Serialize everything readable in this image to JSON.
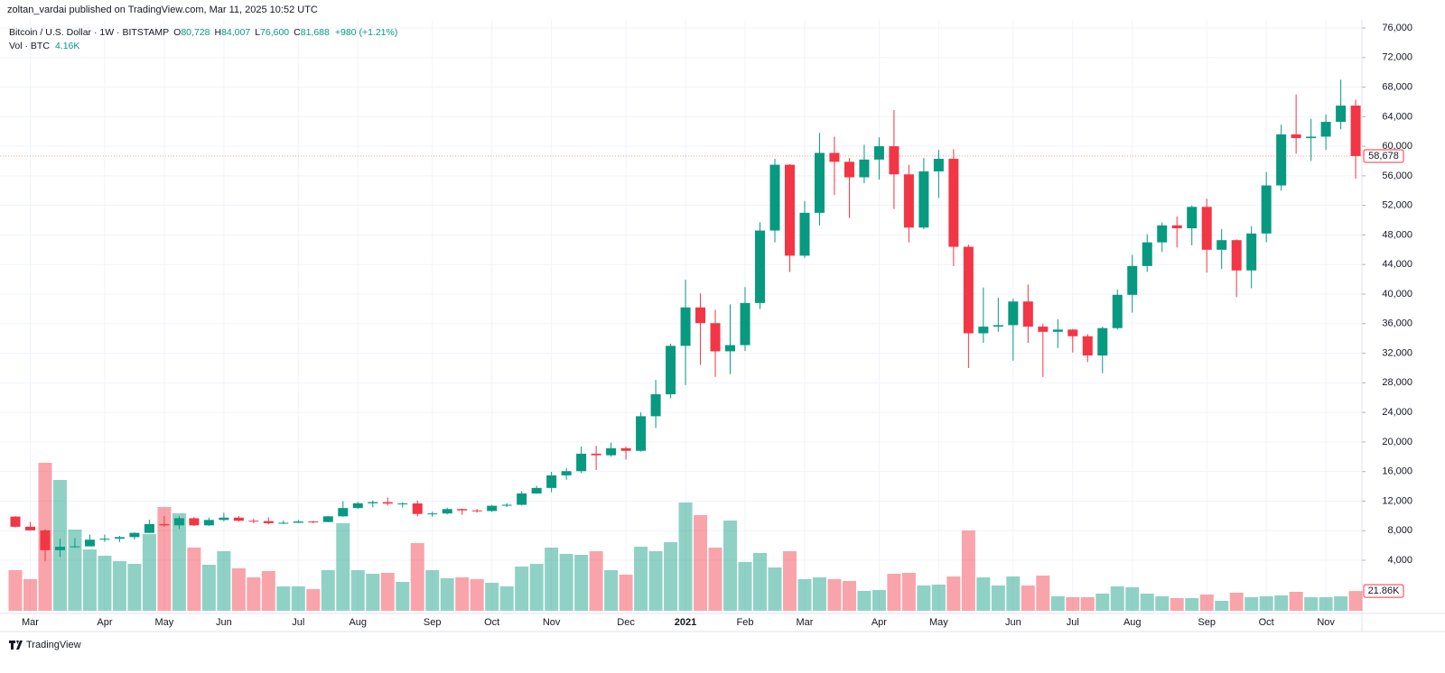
{
  "header": {
    "publisher": "zoltan_vardai published on TradingView.com, Mar 11, 2025 10:52 UTC"
  },
  "footer": {
    "brand": "TradingView"
  },
  "chart_data": {
    "type": "candlestick",
    "legend": {
      "symbol": "Bitcoin / U.S. Dollar · 1W · BITSTAMP",
      "ohlc": [
        {
          "key": "O",
          "value": "80,728"
        },
        {
          "key": "H",
          "value": "84,007"
        },
        {
          "key": "L",
          "value": "76,600"
        },
        {
          "key": "C",
          "value": "81,688"
        }
      ],
      "change": "+980 (+1.21%)",
      "volume_name": "Vol · BTC",
      "volume_value": "4.16K"
    },
    "up_color": "#089981",
    "down_color": "#f23645",
    "categories": [
      null,
      "Mar",
      null,
      null,
      null,
      null,
      "Apr",
      null,
      null,
      null,
      "May",
      null,
      null,
      null,
      "Jun",
      null,
      null,
      null,
      null,
      "Jul",
      null,
      null,
      null,
      "Aug",
      null,
      null,
      null,
      null,
      "Sep",
      null,
      null,
      null,
      "Oct",
      null,
      null,
      null,
      "Nov",
      null,
      null,
      null,
      null,
      "Dec",
      null,
      null,
      null,
      "2021",
      null,
      null,
      null,
      "Feb",
      null,
      null,
      null,
      "Mar",
      null,
      null,
      null,
      null,
      "Apr",
      null,
      null,
      null,
      "May",
      null,
      null,
      null,
      null,
      "Jun",
      null,
      null,
      null,
      "Jul",
      null,
      null,
      null,
      "Aug",
      null,
      null,
      null,
      null,
      "Sep",
      null,
      null,
      null,
      "Oct",
      null,
      null,
      null,
      "Nov",
      null,
      null
    ],
    "open": [
      9900,
      8530,
      8040,
      5360,
      5820,
      5880,
      6780,
      6910,
      7130,
      7700,
      8890,
      8720,
      9680,
      8720,
      9450,
      9760,
      9340,
      9290,
      9010,
      9070,
      9240,
      9170,
      9940,
      11060,
      11700,
      11860,
      11660,
      11680,
      10260,
      10330,
      10920,
      10740,
      10660,
      11370,
      11500,
      13030,
      13780,
      15480,
      16050,
      18410,
      18200,
      19150,
      18800,
      23480,
      26450,
      33000,
      38200,
      36070,
      32260,
      33100,
      38800,
      48600,
      57500,
      45200,
      51000,
      59100,
      57900,
      55800,
      58200,
      60000,
      56200,
      49000,
      56600,
      58300,
      46400,
      34700,
      35600,
      35800,
      39000,
      35600,
      34900,
      35200,
      34300,
      31700,
      35400,
      39900,
      43800,
      47000,
      49300,
      48900,
      51800,
      46000,
      47300,
      43200,
      48200,
      54700,
      61600,
      61100,
      61300,
      63300,
      65500
    ],
    "high": [
      9960,
      9180,
      8180,
      6900,
      6980,
      7470,
      7470,
      7300,
      7780,
      9480,
      10000,
      9950,
      9840,
      9760,
      10430,
      9990,
      9590,
      9790,
      9360,
      9450,
      9320,
      10000,
      12000,
      11910,
      12080,
      12480,
      11840,
      12080,
      10580,
      11100,
      10990,
      10950,
      11480,
      11730,
      13350,
      14060,
      15960,
      16480,
      19400,
      19480,
      19920,
      19390,
      24000,
      28400,
      33300,
      41950,
      40100,
      37880,
      38600,
      40950,
      49700,
      58300,
      57580,
      52600,
      61800,
      61300,
      58400,
      60200,
      61200,
      64900,
      57500,
      58400,
      59500,
      59600,
      46700,
      40900,
      39500,
      39400,
      41300,
      36000,
      36600,
      35300,
      34600,
      35600,
      40600,
      45300,
      48100,
      49700,
      50500,
      52000,
      52900,
      48800,
      47400,
      49200,
      56500,
      62900,
      67000,
      63700,
      64300,
      69000,
      66300
    ],
    "low": [
      8430,
      8000,
      3850,
      4440,
      5700,
      5870,
      6480,
      6470,
      6790,
      7680,
      8530,
      8210,
      8640,
      8630,
      9270,
      9220,
      9020,
      8850,
      8890,
      9050,
      9010,
      9130,
      9880,
      10960,
      11150,
      11400,
      11120,
      9900,
      9880,
      10200,
      10130,
      10430,
      10540,
      11200,
      11410,
      12990,
      13200,
      14880,
      15780,
      16200,
      18000,
      17600,
      18700,
      21900,
      25900,
      27700,
      30420,
      28800,
      29180,
      32300,
      37990,
      47000,
      43000,
      44900,
      49300,
      53400,
      50300,
      55000,
      55500,
      51500,
      47000,
      48800,
      53000,
      43800,
      30000,
      33400,
      34900,
      31000,
      33400,
      28800,
      32700,
      32100,
      30800,
      29300,
      35200,
      37500,
      43000,
      45700,
      46300,
      46600,
      42900,
      43400,
      39600,
      40800,
      47000,
      54000,
      59000,
      58000,
      59500,
      62300,
      55600
    ],
    "close": [
      8530,
      8040,
      5360,
      5820,
      5880,
      6780,
      6910,
      7130,
      7700,
      8890,
      8720,
      9680,
      8720,
      9450,
      9760,
      9340,
      9290,
      9010,
      9070,
      9240,
      9170,
      9940,
      11060,
      11700,
      11860,
      11660,
      11680,
      10260,
      10330,
      10920,
      10740,
      10660,
      11370,
      11500,
      13030,
      13780,
      15480,
      16050,
      18410,
      18200,
      19150,
      18800,
      23480,
      26450,
      33000,
      38200,
      36070,
      32260,
      33100,
      38800,
      48600,
      57500,
      45200,
      51000,
      59100,
      57900,
      55800,
      58200,
      60000,
      56200,
      49000,
      56600,
      58300,
      46400,
      34700,
      35600,
      35800,
      39000,
      35600,
      34900,
      35200,
      34300,
      31700,
      35400,
      39900,
      43800,
      47000,
      49300,
      48900,
      51800,
      46000,
      47300,
      43200,
      48200,
      54700,
      61600,
      61100,
      61300,
      63300,
      65500,
      58678
    ],
    "last_close_label": "58,678",
    "volume": [
      45000,
      35000,
      164000,
      145000,
      90000,
      68000,
      61000,
      55000,
      52000,
      85000,
      115000,
      108000,
      70000,
      51000,
      66000,
      47000,
      37000,
      44000,
      27000,
      27000,
      24000,
      45000,
      97000,
      45000,
      41000,
      42000,
      32000,
      75000,
      45000,
      36000,
      37000,
      35000,
      31000,
      27000,
      49000,
      52000,
      70000,
      63000,
      62000,
      66000,
      45000,
      40000,
      71000,
      66000,
      76000,
      120000,
      106000,
      70000,
      100000,
      54000,
      64000,
      48000,
      66000,
      35000,
      37000,
      35000,
      33000,
      22000,
      23000,
      41000,
      42000,
      28000,
      29000,
      38000,
      89000,
      37000,
      28000,
      38000,
      28000,
      39000,
      16000,
      15000,
      15000,
      19000,
      27000,
      26000,
      19000,
      16000,
      14000,
      14000,
      18000,
      11000,
      20000,
      15000,
      16000,
      17000,
      21000,
      15000,
      15000,
      16000,
      21860
    ],
    "last_volume_label": "21.86K",
    "ylim": [
      -2834,
      77100
    ],
    "yticks": [
      {
        "value": 4000,
        "label": "4,000"
      },
      {
        "value": 8000,
        "label": "8,000"
      },
      {
        "value": 12000,
        "label": "12,000"
      },
      {
        "value": 16000,
        "label": "16,000"
      },
      {
        "value": 20000,
        "label": "20,000"
      },
      {
        "value": 24000,
        "label": "24,000"
      },
      {
        "value": 28000,
        "label": "28,000"
      },
      {
        "value": 32000,
        "label": "32,000"
      },
      {
        "value": 36000,
        "label": "36,000"
      },
      {
        "value": 40000,
        "label": "40,000"
      },
      {
        "value": 44000,
        "label": "44,000"
      },
      {
        "value": 48000,
        "label": "48,000"
      },
      {
        "value": 52000,
        "label": "52,000"
      },
      {
        "value": 56000,
        "label": "56,000"
      },
      {
        "value": 60000,
        "label": "60,000"
      },
      {
        "value": 64000,
        "label": "64,000"
      },
      {
        "value": 68000,
        "label": "68,000"
      },
      {
        "value": 72000,
        "label": "72,000"
      },
      {
        "value": 76000,
        "label": "76,000"
      }
    ],
    "grid": true
  }
}
